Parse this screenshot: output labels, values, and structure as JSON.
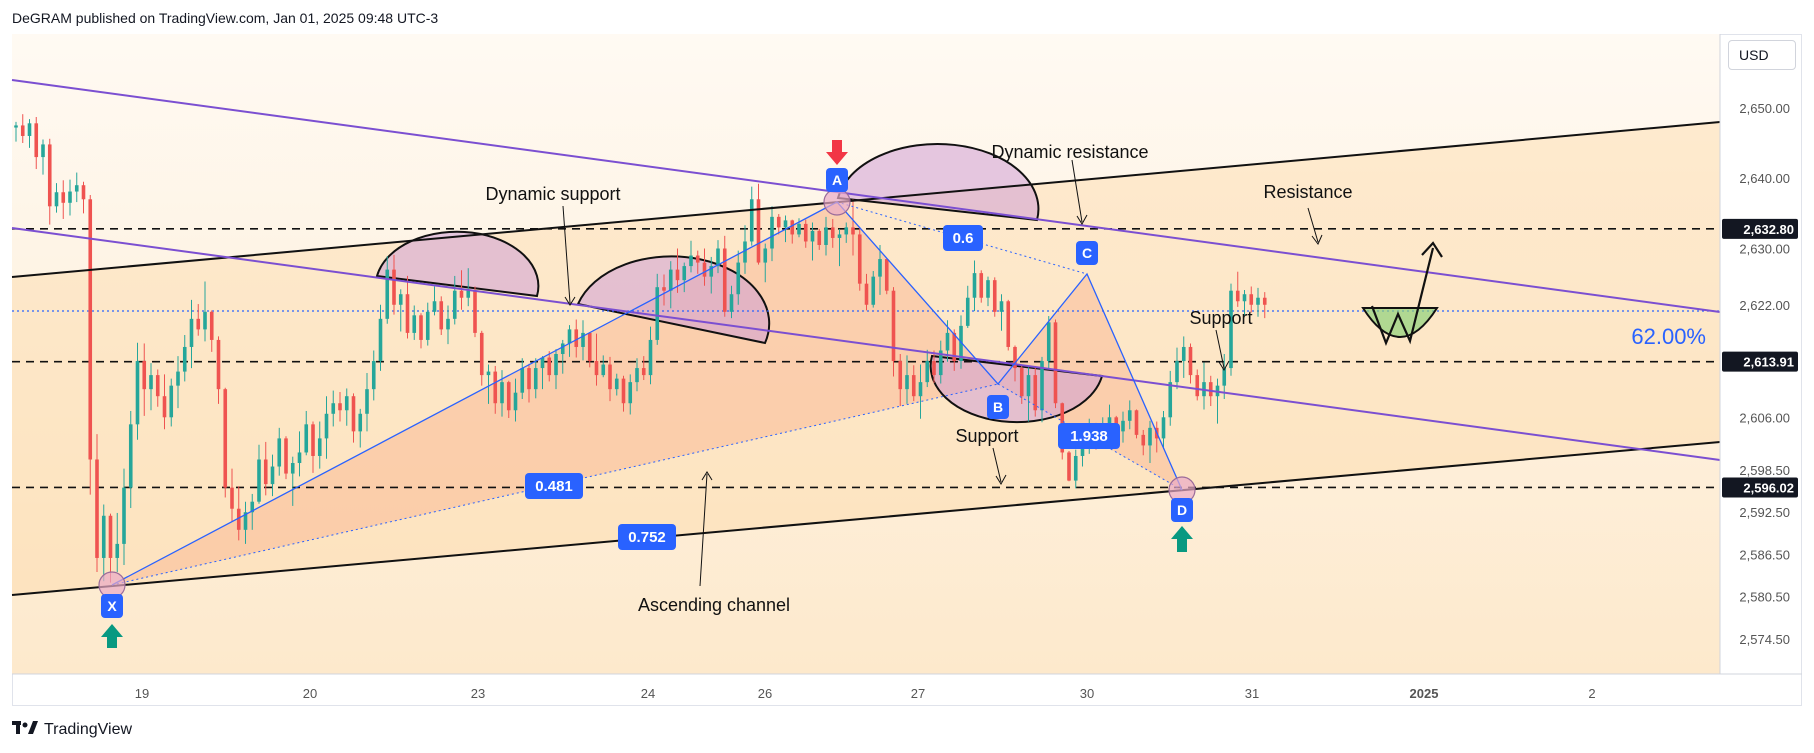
{
  "header": {
    "published_line": "DeGRAM published on TradingView.com, Jan 01, 2025 09:48 UTC-3"
  },
  "currency_selector": {
    "label": "USD"
  },
  "footer": {
    "brand": "TradingView",
    "logo_icon": "tradingview-logo-icon"
  },
  "colors": {
    "bull": "#26a69a",
    "bear": "#ef5350",
    "purple_line": "#7b4fd1",
    "harmonic": "#2962ff",
    "badge": "#2962ff",
    "arrow_up": "#089981",
    "arrow_down": "#f23645"
  },
  "chart_data": {
    "type": "candlestick",
    "ylim": [
      2569.5,
      2660.5
    ],
    "price_ticks": [
      "2,574.50",
      "2,580.50",
      "2,586.50",
      "2,592.50",
      "2,598.50",
      "2,606.00",
      "2,614.00",
      "2,622.00",
      "2,630.00",
      "2,640.00",
      "2,650.00"
    ],
    "x_ticks": [
      "19",
      "20",
      "23",
      "24",
      "26",
      "27",
      "30",
      "31",
      "2025",
      "2"
    ],
    "levels": [
      {
        "label": "2,632.80",
        "value": 2632.8
      },
      {
        "label": "2,613.91",
        "value": 2613.91
      },
      {
        "label": "2,596.02",
        "value": 2596.02
      }
    ],
    "current_price": 2622.0,
    "percent_label": "62.00%",
    "harmonic_points": [
      {
        "label": "X",
        "price": 2583.0
      },
      {
        "label": "A",
        "price": 2639.0
      },
      {
        "label": "B",
        "price": 2611.0
      },
      {
        "label": "C",
        "price": 2627.5
      },
      {
        "label": "D",
        "price": 2596.0
      }
    ],
    "ratios": [
      "0.481",
      "0.752",
      "0.6",
      "1.938"
    ],
    "annotations": [
      "Dynamic support",
      "Dynamic resistance",
      "Resistance",
      "Support",
      "Support",
      "Ascending channel"
    ],
    "ohlc": [
      [
        2647.2,
        2648.0,
        2645.2,
        2647.5
      ],
      [
        2647.5,
        2649.1,
        2645.0,
        2646.0
      ],
      [
        2646.0,
        2648.4,
        2644.3,
        2647.8
      ],
      [
        2647.8,
        2648.7,
        2641.3,
        2643.0
      ],
      [
        2643.0,
        2645.5,
        2640.5,
        2644.8
      ],
      [
        2644.8,
        2645.6,
        2633.4,
        2636.0
      ],
      [
        2636.0,
        2639.3,
        2635.1,
        2638.0
      ],
      [
        2638.0,
        2639.7,
        2634.2,
        2636.5
      ],
      [
        2636.5,
        2639.8,
        2634.7,
        2638.1
      ],
      [
        2638.1,
        2640.8,
        2636.6,
        2639.0
      ],
      [
        2639.0,
        2639.5,
        2635.0,
        2637.0
      ],
      [
        2637.0,
        2637.6,
        2595.0,
        2600.0
      ],
      [
        2600.0,
        2603.6,
        2584.0,
        2586.0
      ],
      [
        2586.0,
        2593.6,
        2582.7,
        2592.0
      ],
      [
        2592.0,
        2592.3,
        2582.5,
        2586.0
      ],
      [
        2586.0,
        2592.4,
        2584.0,
        2588.0
      ],
      [
        2588.0,
        2598.7,
        2585.0,
        2596.0
      ],
      [
        2596.0,
        2606.9,
        2593.1,
        2605.0
      ],
      [
        2605.0,
        2616.6,
        2602.8,
        2614.0
      ],
      [
        2614.0,
        2616.5,
        2606.2,
        2610.0
      ],
      [
        2610.0,
        2613.7,
        2607.0,
        2612.0
      ],
      [
        2612.0,
        2612.8,
        2607.5,
        2609.0
      ],
      [
        2609.0,
        2612.1,
        2604.3,
        2606.0
      ],
      [
        2606.0,
        2611.5,
        2604.7,
        2610.5
      ],
      [
        2610.5,
        2614.7,
        2607.3,
        2612.5
      ],
      [
        2612.5,
        2617.7,
        2611.1,
        2616.0
      ],
      [
        2616.0,
        2622.7,
        2613.0,
        2620.0
      ],
      [
        2620.0,
        2622.1,
        2617.6,
        2618.5
      ],
      [
        2618.5,
        2625.3,
        2616.8,
        2621.0
      ],
      [
        2621.0,
        2621.2,
        2615.3,
        2617.0
      ],
      [
        2617.0,
        2617.5,
        2607.9,
        2610.0
      ],
      [
        2610.0,
        2610.2,
        2594.6,
        2596.0
      ],
      [
        2596.0,
        2598.7,
        2591.2,
        2593.0
      ],
      [
        2593.0,
        2596.2,
        2588.5,
        2590.0
      ],
      [
        2590.0,
        2594.0,
        2588.0,
        2592.5
      ],
      [
        2592.5,
        2595.1,
        2590.0,
        2594.0
      ],
      [
        2594.0,
        2602.1,
        2593.7,
        2600.0
      ],
      [
        2600.0,
        2602.5,
        2594.9,
        2596.5
      ],
      [
        2596.5,
        2600.7,
        2594.8,
        2599.0
      ],
      [
        2599.0,
        2604.5,
        2597.7,
        2603.0
      ],
      [
        2603.0,
        2603.3,
        2597.2,
        2598.0
      ],
      [
        2598.0,
        2600.4,
        2593.4,
        2599.5
      ],
      [
        2599.5,
        2604.0,
        2597.6,
        2601.0
      ],
      [
        2601.0,
        2606.9,
        2600.6,
        2605.0
      ],
      [
        2605.0,
        2605.4,
        2598.1,
        2600.5
      ],
      [
        2600.5,
        2605.4,
        2598.7,
        2603.0
      ],
      [
        2603.0,
        2609.0,
        2600.1,
        2606.5
      ],
      [
        2606.5,
        2609.8,
        2604.7,
        2608.0
      ],
      [
        2608.0,
        2609.6,
        2605.4,
        2607.0
      ],
      [
        2607.0,
        2610.1,
        2604.8,
        2609.0
      ],
      [
        2609.0,
        2609.4,
        2602.4,
        2604.0
      ],
      [
        2604.0,
        2607.2,
        2601.7,
        2606.5
      ],
      [
        2606.5,
        2612.3,
        2604.0,
        2610.0
      ],
      [
        2610.0,
        2615.5,
        2608.4,
        2614.0
      ],
      [
        2614.0,
        2622.0,
        2612.6,
        2620.0
      ],
      [
        2620.0,
        2628.9,
        2619.3,
        2627.0
      ],
      [
        2627.0,
        2629.1,
        2620.6,
        2622.0
      ],
      [
        2622.0,
        2624.2,
        2618.2,
        2623.5
      ],
      [
        2623.5,
        2626.1,
        2617.2,
        2618.0
      ],
      [
        2618.0,
        2621.9,
        2617.0,
        2620.5
      ],
      [
        2620.5,
        2620.8,
        2615.8,
        2617.0
      ],
      [
        2617.0,
        2622.3,
        2616.2,
        2621.0
      ],
      [
        2621.0,
        2624.6,
        2620.5,
        2622.5
      ],
      [
        2622.5,
        2623.2,
        2617.7,
        2618.5
      ],
      [
        2618.5,
        2621.9,
        2616.4,
        2620.0
      ],
      [
        2620.0,
        2626.1,
        2619.2,
        2624.0
      ],
      [
        2624.0,
        2626.9,
        2621.3,
        2623.0
      ],
      [
        2623.0,
        2627.2,
        2621.8,
        2624.0
      ],
      [
        2624.0,
        2624.6,
        2617.4,
        2618.0
      ],
      [
        2618.0,
        2618.3,
        2610.5,
        2612.0
      ],
      [
        2612.0,
        2613.5,
        2607.9,
        2612.5
      ],
      [
        2612.5,
        2613.3,
        2606.5,
        2608.0
      ],
      [
        2608.0,
        2612.7,
        2606.1,
        2611.0
      ],
      [
        2611.0,
        2611.2,
        2605.9,
        2607.0
      ],
      [
        2607.0,
        2611.5,
        2605.4,
        2609.5
      ],
      [
        2609.5,
        2614.4,
        2608.6,
        2613.0
      ],
      [
        2613.0,
        2613.6,
        2608.1,
        2610.0
      ],
      [
        2610.0,
        2614.4,
        2608.7,
        2613.0
      ],
      [
        2613.0,
        2614.7,
        2610.0,
        2614.5
      ],
      [
        2614.5,
        2615.4,
        2611.1,
        2612.0
      ],
      [
        2612.0,
        2615.7,
        2610.0,
        2615.0
      ],
      [
        2615.0,
        2617.0,
        2612.2,
        2616.5
      ],
      [
        2616.5,
        2619.1,
        2614.6,
        2618.5
      ],
      [
        2618.5,
        2619.9,
        2614.5,
        2616.0
      ],
      [
        2616.0,
        2619.8,
        2614.1,
        2618.0
      ],
      [
        2618.0,
        2618.1,
        2613.1,
        2614.0
      ],
      [
        2614.0,
        2617.9,
        2610.5,
        2612.0
      ],
      [
        2612.0,
        2614.8,
        2611.7,
        2613.5
      ],
      [
        2613.5,
        2614.6,
        2608.3,
        2610.0
      ],
      [
        2610.0,
        2612.2,
        2609.1,
        2611.5
      ],
      [
        2611.5,
        2611.9,
        2606.8,
        2608.0
      ],
      [
        2608.0,
        2612.1,
        2606.4,
        2611.0
      ],
      [
        2611.0,
        2614.4,
        2609.7,
        2613.0
      ],
      [
        2613.0,
        2614.7,
        2611.3,
        2612.0
      ],
      [
        2612.0,
        2618.9,
        2610.7,
        2617.0
      ],
      [
        2617.0,
        2626.4,
        2616.3,
        2624.5
      ],
      [
        2624.5,
        2626.3,
        2621.9,
        2624.0
      ],
      [
        2624.0,
        2628.2,
        2621.5,
        2627.0
      ],
      [
        2627.0,
        2630.0,
        2623.7,
        2625.5
      ],
      [
        2625.5,
        2628.0,
        2623.8,
        2627.5
      ],
      [
        2627.5,
        2631.1,
        2626.6,
        2629.0
      ],
      [
        2629.0,
        2629.7,
        2626.4,
        2628.0
      ],
      [
        2628.0,
        2630.0,
        2624.7,
        2626.0
      ],
      [
        2626.0,
        2628.8,
        2623.6,
        2627.5
      ],
      [
        2627.5,
        2631.2,
        2626.5,
        2630.0
      ],
      [
        2630.0,
        2631.8,
        2620.3,
        2621.0
      ],
      [
        2621.0,
        2624.7,
        2620.1,
        2623.5
      ],
      [
        2623.5,
        2629.7,
        2622.0,
        2628.0
      ],
      [
        2628.0,
        2633.3,
        2626.4,
        2631.0
      ],
      [
        2631.0,
        2638.8,
        2630.4,
        2637.0
      ],
      [
        2637.0,
        2639.2,
        2627.7,
        2628.0
      ],
      [
        2628.0,
        2630.7,
        2625.2,
        2630.0
      ],
      [
        2630.0,
        2636.0,
        2628.2,
        2634.5
      ],
      [
        2634.5,
        2634.9,
        2632.0,
        2633.0
      ],
      [
        2633.0,
        2634.7,
        2630.9,
        2634.0
      ],
      [
        2634.0,
        2634.1,
        2630.7,
        2632.0
      ],
      [
        2632.0,
        2634.3,
        2631.6,
        2633.5
      ],
      [
        2633.5,
        2634.1,
        2630.1,
        2631.0
      ],
      [
        2631.0,
        2633.7,
        2628.3,
        2632.5
      ],
      [
        2632.5,
        2632.8,
        2629.8,
        2630.5
      ],
      [
        2630.5,
        2634.5,
        2629.0,
        2633.0
      ],
      [
        2633.0,
        2634.2,
        2630.1,
        2631.5
      ],
      [
        2631.5,
        2632.8,
        2627.5,
        2632.0
      ],
      [
        2632.0,
        2633.7,
        2630.8,
        2633.0
      ],
      [
        2633.0,
        2637.0,
        2629.0,
        2632.0
      ],
      [
        2632.0,
        2633.0,
        2624.0,
        2625.0
      ],
      [
        2625.0,
        2626.4,
        2621.2,
        2622.0
      ],
      [
        2622.0,
        2626.8,
        2621.6,
        2626.0
      ],
      [
        2626.0,
        2630.5,
        2623.4,
        2628.5
      ],
      [
        2628.5,
        2628.6,
        2623.5,
        2624.0
      ],
      [
        2624.0,
        2624.5,
        2611.8,
        2614.0
      ],
      [
        2614.0,
        2615.0,
        2607.6,
        2610.0
      ],
      [
        2610.0,
        2614.8,
        2607.9,
        2612.0
      ],
      [
        2612.0,
        2613.4,
        2608.3,
        2609.0
      ],
      [
        2609.0,
        2613.5,
        2605.8,
        2611.0
      ],
      [
        2611.0,
        2615.6,
        2610.3,
        2614.0
      ],
      [
        2614.0,
        2615.5,
        2610.9,
        2612.0
      ],
      [
        2612.0,
        2616.9,
        2610.8,
        2615.5
      ],
      [
        2615.5,
        2619.8,
        2613.9,
        2618.0
      ],
      [
        2618.0,
        2618.5,
        2612.6,
        2614.0
      ],
      [
        2614.0,
        2620.5,
        2612.9,
        2619.0
      ],
      [
        2619.0,
        2624.7,
        2618.7,
        2623.0
      ],
      [
        2623.0,
        2628.3,
        2621.1,
        2626.5
      ],
      [
        2626.5,
        2626.9,
        2622.3,
        2623.0
      ],
      [
        2623.0,
        2626.0,
        2621.8,
        2625.5
      ],
      [
        2625.5,
        2625.9,
        2620.3,
        2621.0
      ],
      [
        2621.0,
        2623.5,
        2618.3,
        2622.5
      ],
      [
        2622.5,
        2622.7,
        2615.5,
        2616.0
      ],
      [
        2616.0,
        2616.2,
        2611.1,
        2613.0
      ],
      [
        2613.0,
        2613.3,
        2607.9,
        2609.0
      ],
      [
        2609.0,
        2613.1,
        2605.4,
        2612.0
      ],
      [
        2612.0,
        2613.3,
        2606.1,
        2607.0
      ],
      [
        2607.0,
        2614.6,
        2605.3,
        2614.0
      ],
      [
        2614.0,
        2620.4,
        2613.0,
        2619.5
      ],
      [
        2619.5,
        2619.9,
        2607.3,
        2608.0
      ],
      [
        2608.0,
        2608.1,
        2600.0,
        2601.0
      ],
      [
        2601.0,
        2601.2,
        2596.9,
        2597.0
      ],
      [
        2597.0,
        2601.4,
        2595.9,
        2600.5
      ],
      [
        2600.5,
        2603.6,
        2599.0,
        2602.0
      ],
      [
        2602.0,
        2605.8,
        2600.8,
        2604.0
      ],
      [
        2604.0,
        2605.2,
        2601.4,
        2602.5
      ],
      [
        2602.5,
        2606.0,
        2602.2,
        2605.0
      ],
      [
        2605.0,
        2607.8,
        2604.3,
        2606.0
      ],
      [
        2606.0,
        2606.2,
        2603.3,
        2604.0
      ],
      [
        2604.0,
        2606.8,
        2602.4,
        2605.5
      ],
      [
        2605.5,
        2608.4,
        2604.3,
        2607.0
      ],
      [
        2607.0,
        2607.1,
        2603.0,
        2603.5
      ],
      [
        2603.5,
        2604.2,
        2600.6,
        2602.0
      ],
      [
        2602.0,
        2605.5,
        2599.5,
        2604.5
      ],
      [
        2604.5,
        2605.4,
        2601.0,
        2603.0
      ],
      [
        2603.0,
        2606.9,
        2601.5,
        2606.0
      ],
      [
        2606.0,
        2612.6,
        2604.8,
        2611.0
      ],
      [
        2611.0,
        2615.9,
        2610.0,
        2614.0
      ],
      [
        2614.0,
        2617.5,
        2611.6,
        2616.0
      ],
      [
        2616.0,
        2616.5,
        2610.8,
        2612.0
      ],
      [
        2612.0,
        2612.8,
        2608.4,
        2609.0
      ],
      [
        2609.0,
        2613.8,
        2607.1,
        2611.0
      ],
      [
        2611.0,
        2611.9,
        2607.6,
        2609.0
      ],
      [
        2609.0,
        2611.5,
        2605.1,
        2610.5
      ],
      [
        2610.5,
        2615.0,
        2608.6,
        2613.0
      ],
      [
        2613.0,
        2625.0,
        2611.9,
        2624.0
      ],
      [
        2624.0,
        2626.7,
        2621.7,
        2622.5
      ],
      [
        2622.5,
        2624.1,
        2620.4,
        2623.5
      ],
      [
        2623.5,
        2624.6,
        2620.9,
        2622.0
      ],
      [
        2622.0,
        2624.4,
        2620.3,
        2623.0
      ],
      [
        2623.0,
        2623.8,
        2620.1,
        2622.0
      ]
    ]
  }
}
